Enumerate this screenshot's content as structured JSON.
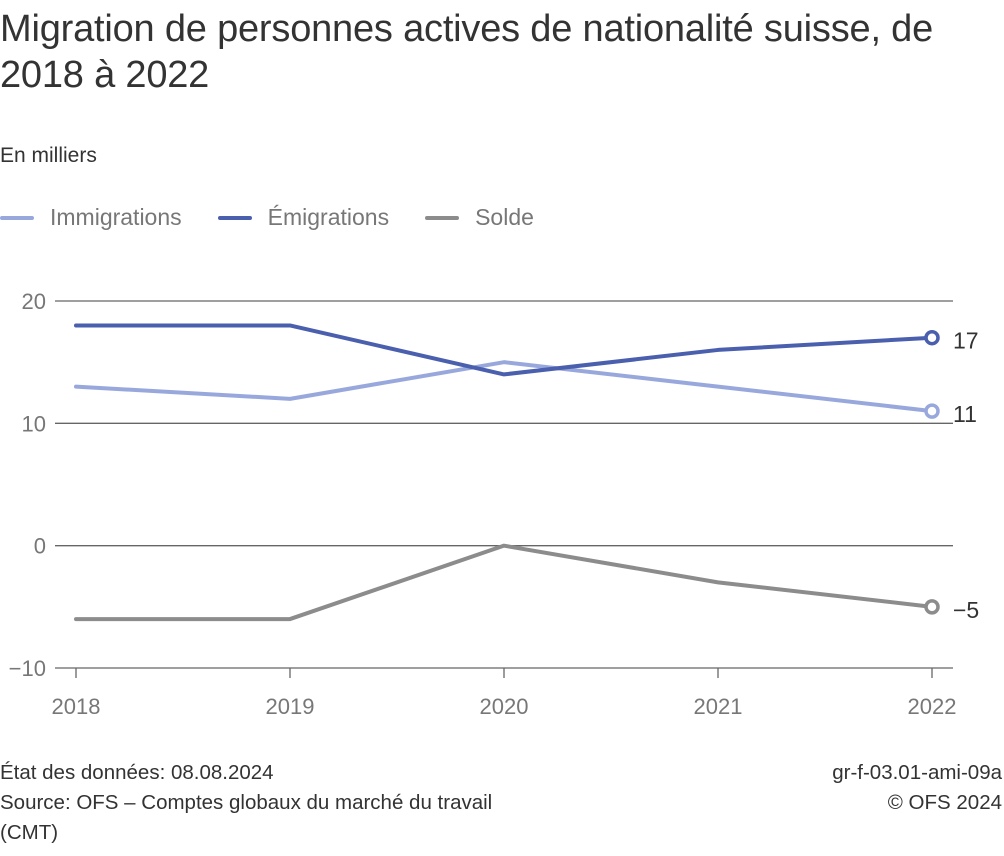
{
  "chart_data": {
    "type": "line",
    "title": "Migration de personnes actives de nationalité suisse, de 2018 à 2022",
    "subtitle": "En milliers",
    "xlabel": "",
    "ylabel": "",
    "categories": [
      "2018",
      "2019",
      "2020",
      "2021",
      "2022"
    ],
    "ylim": [
      -10,
      20
    ],
    "yticks": [
      20,
      10,
      0,
      -10
    ],
    "ytick_labels": [
      "20",
      "10",
      "0",
      "−10"
    ],
    "grid": true,
    "legend_position": "top-left",
    "series": [
      {
        "name": "Immigrations",
        "color": "#98a8dc",
        "values": [
          13,
          12,
          15,
          13,
          11
        ],
        "end_label": "11"
      },
      {
        "name": "Émigrations",
        "color": "#4a5fad",
        "values": [
          18,
          18,
          14,
          16,
          17
        ],
        "end_label": "17"
      },
      {
        "name": "Solde",
        "color": "#8c8c8c",
        "values": [
          -6,
          -6,
          0,
          -3,
          -5
        ],
        "end_label": "−5"
      }
    ]
  },
  "footer": {
    "data_status": "État des données: 08.08.2024",
    "source_line1": "Source: OFS – Comptes globaux du marché du travail",
    "source_line2": "(CMT)",
    "chart_id": "gr-f-03.01-ami-09a",
    "copyright": "© OFS 2024"
  }
}
